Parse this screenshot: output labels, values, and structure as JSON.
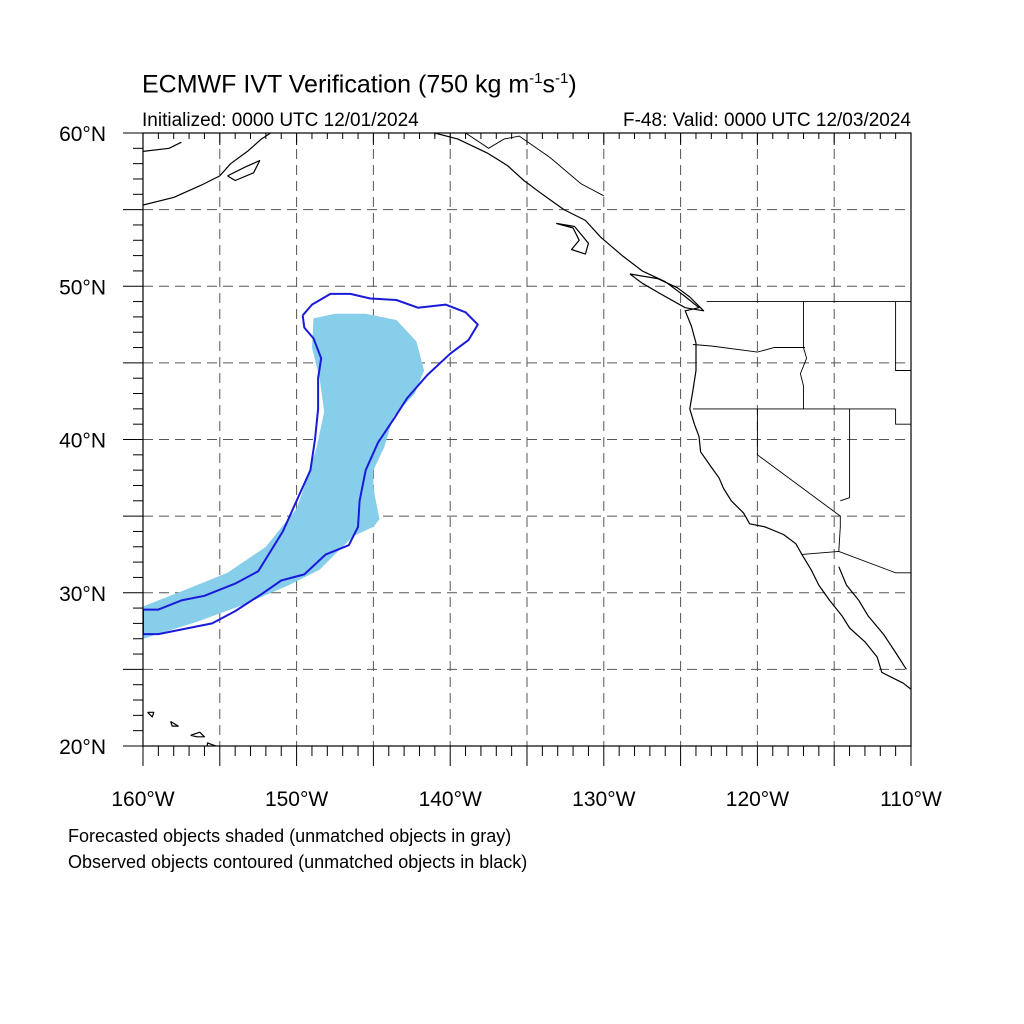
{
  "title": {
    "main": "ECMWF IVT Verification (750 kg m",
    "exp1": "-1",
    "mid": "s",
    "exp2": "-1",
    "end": ")"
  },
  "subtitle": {
    "left": "Initialized: 0000 UTC 12/01/2024",
    "right": "F-48: Valid: 0000 UTC 12/03/2024"
  },
  "map": {
    "lon_range": [
      -160,
      -110
    ],
    "lat_range": [
      20,
      60
    ],
    "grid_lines": "dashed",
    "grid_step_deg": 5,
    "lat_labels": [
      {
        "value": 60,
        "text": "60°N"
      },
      {
        "value": 50,
        "text": "50°N"
      },
      {
        "value": 40,
        "text": "40°N"
      },
      {
        "value": 30,
        "text": "30°N"
      },
      {
        "value": 20,
        "text": "20°N"
      }
    ],
    "lon_labels": [
      {
        "value": -160,
        "text": "160°W"
      },
      {
        "value": -150,
        "text": "150°W"
      },
      {
        "value": -140,
        "text": "140°W"
      },
      {
        "value": -130,
        "text": "130°W"
      },
      {
        "value": -120,
        "text": "120°W"
      },
      {
        "value": -110,
        "text": "110°W"
      }
    ],
    "colors": {
      "forecast_fill": "#87ceeb",
      "observed_contour": "#1a1adb",
      "coastline": "#000000",
      "grid": "#555555"
    }
  },
  "objects": {
    "forecast_shaded": [
      [
        -148.9,
        47.9
      ],
      [
        -147.5,
        48.2
      ],
      [
        -145.5,
        48.2
      ],
      [
        -143.5,
        47.8
      ],
      [
        -142.2,
        46.4
      ],
      [
        -141.7,
        44.5
      ],
      [
        -142.3,
        43.0
      ],
      [
        -143.7,
        41.5
      ],
      [
        -144.3,
        39.5
      ],
      [
        -145.0,
        38.0
      ],
      [
        -145.0,
        37.0
      ],
      [
        -144.9,
        36.3
      ],
      [
        -144.6,
        34.8
      ],
      [
        -145.0,
        34.3
      ],
      [
        -146.3,
        33.7
      ],
      [
        -148.5,
        31.5
      ],
      [
        -150.5,
        30.5
      ],
      [
        -153.5,
        29.2
      ],
      [
        -156.5,
        28.1
      ],
      [
        -160.0,
        27.0
      ],
      [
        -160.0,
        29.1
      ],
      [
        -157.0,
        30.3
      ],
      [
        -154.5,
        31.3
      ],
      [
        -152.0,
        33.0
      ],
      [
        -150.0,
        35.5
      ],
      [
        -149.3,
        37.5
      ],
      [
        -148.7,
        39.5
      ],
      [
        -148.2,
        41.8
      ],
      [
        -148.5,
        44.0
      ],
      [
        -149.0,
        46.0
      ]
    ],
    "observed_contour": [
      [
        -149.6,
        48.1
      ],
      [
        -149.0,
        48.8
      ],
      [
        -147.8,
        49.5
      ],
      [
        -146.5,
        49.5
      ],
      [
        -145.2,
        49.2
      ],
      [
        -143.5,
        49.1
      ],
      [
        -142.1,
        48.6
      ],
      [
        -140.3,
        48.8
      ],
      [
        -139.0,
        48.3
      ],
      [
        -138.2,
        47.5
      ],
      [
        -138.8,
        46.5
      ],
      [
        -140.0,
        45.6
      ],
      [
        -141.5,
        44.2
      ],
      [
        -142.8,
        42.7
      ],
      [
        -143.7,
        41.3
      ],
      [
        -144.7,
        39.8
      ],
      [
        -145.5,
        38.0
      ],
      [
        -145.9,
        36.0
      ],
      [
        -146.0,
        34.3
      ],
      [
        -146.6,
        33.1
      ],
      [
        -148.1,
        32.5
      ],
      [
        -149.5,
        31.2
      ],
      [
        -151.0,
        30.8
      ],
      [
        -152.3,
        29.9
      ],
      [
        -154.0,
        28.8
      ],
      [
        -155.5,
        28.0
      ],
      [
        -157.5,
        27.6
      ],
      [
        -159.0,
        27.3
      ],
      [
        -160.0,
        27.3
      ],
      [
        -160.0,
        28.9
      ],
      [
        -159.0,
        28.9
      ],
      [
        -157.5,
        29.5
      ],
      [
        -156.0,
        29.8
      ],
      [
        -154.0,
        30.6
      ],
      [
        -152.5,
        31.4
      ],
      [
        -150.9,
        34.0
      ],
      [
        -150.0,
        36.0
      ],
      [
        -149.1,
        38.0
      ],
      [
        -148.8,
        40.0
      ],
      [
        -148.6,
        42.0
      ],
      [
        -148.6,
        44.0
      ],
      [
        -148.4,
        45.3
      ],
      [
        -148.9,
        46.6
      ],
      [
        -149.5,
        47.3
      ],
      [
        -149.6,
        48.1
      ]
    ]
  },
  "coastlines": [
    [
      [
        -160,
        55.3
      ],
      [
        -158,
        55.8
      ],
      [
        -156.2,
        56.6
      ],
      [
        -155,
        57.2
      ],
      [
        -154.3,
        58.0
      ],
      [
        -153.2,
        58.8
      ],
      [
        -152.3,
        59.6
      ],
      [
        -151.7,
        60
      ]
    ],
    [
      [
        -160,
        58.8
      ],
      [
        -158.3,
        59.0
      ],
      [
        -157.5,
        59.4
      ]
    ],
    [
      [
        -154.5,
        57.2
      ],
      [
        -153.3,
        57.8
      ],
      [
        -152.4,
        58.2
      ],
      [
        -152.8,
        57.4
      ],
      [
        -154.0,
        56.9
      ],
      [
        -154.5,
        57.2
      ]
    ],
    [
      [
        -141,
        60
      ],
      [
        -139.5,
        59.6
      ],
      [
        -137.6,
        58.7
      ],
      [
        -136.3,
        57.9
      ],
      [
        -135.2,
        56.9
      ],
      [
        -134.0,
        56.0
      ],
      [
        -132.6,
        55.0
      ],
      [
        -131.2,
        54.3
      ],
      [
        -130.2,
        53.2
      ],
      [
        -128.8,
        52.0
      ],
      [
        -127.5,
        51.0
      ],
      [
        -126.0,
        50.3
      ],
      [
        -124.8,
        49.4
      ],
      [
        -123.8,
        48.6
      ],
      [
        -124.7,
        48.4
      ],
      [
        -124.3,
        47.4
      ],
      [
        -124.0,
        46.3
      ],
      [
        -124.0,
        44.5
      ],
      [
        -124.2,
        43.2
      ],
      [
        -124.4,
        42.0
      ],
      [
        -124.1,
        41.0
      ],
      [
        -123.8,
        40.2
      ],
      [
        -123.7,
        39.2
      ],
      [
        -123.0,
        38.2
      ],
      [
        -122.5,
        37.5
      ],
      [
        -122.2,
        36.8
      ],
      [
        -121.7,
        36.0
      ],
      [
        -120.9,
        35.2
      ],
      [
        -120.5,
        34.5
      ],
      [
        -119.5,
        34.3
      ],
      [
        -118.3,
        33.8
      ],
      [
        -117.5,
        33.2
      ],
      [
        -117.1,
        32.5
      ],
      [
        -116.5,
        31.5
      ],
      [
        -116.0,
        30.5
      ],
      [
        -115.3,
        29.5
      ],
      [
        -114.5,
        28.5
      ],
      [
        -114.0,
        27.7
      ],
      [
        -113.0,
        26.8
      ],
      [
        -112.2,
        25.8
      ],
      [
        -111.9,
        24.8
      ],
      [
        -110.5,
        24.1
      ],
      [
        -110.0,
        23.7
      ]
    ],
    [
      [
        -114.7,
        31.7
      ],
      [
        -114.2,
        30.5
      ],
      [
        -113.4,
        29.5
      ],
      [
        -112.8,
        28.5
      ],
      [
        -111.8,
        27.3
      ],
      [
        -111.0,
        26.1
      ],
      [
        -110.3,
        25.0
      ]
    ],
    [
      [
        -133.1,
        54.1
      ],
      [
        -132.0,
        53.8
      ],
      [
        -131.6,
        53.0
      ],
      [
        -132.1,
        52.4
      ],
      [
        -131.2,
        52.1
      ],
      [
        -131.0,
        52.8
      ],
      [
        -131.9,
        53.9
      ],
      [
        -133.1,
        54.1
      ]
    ],
    [
      [
        -128.3,
        50.8
      ],
      [
        -126.5,
        50.5
      ],
      [
        -125.2,
        49.9
      ],
      [
        -124.4,
        49.3
      ],
      [
        -123.5,
        48.4
      ],
      [
        -124.7,
        48.6
      ],
      [
        -126.3,
        49.5
      ],
      [
        -127.5,
        50.2
      ],
      [
        -128.3,
        50.8
      ]
    ],
    [
      [
        -155.0,
        19.9
      ],
      [
        -155.8,
        20.2
      ],
      [
        -155.9,
        19.1
      ],
      [
        -155.0,
        19.9
      ]
    ],
    [
      [
        -156.9,
        20.7
      ],
      [
        -156.3,
        20.9
      ],
      [
        -156.0,
        20.6
      ],
      [
        -156.5,
        20.6
      ],
      [
        -156.9,
        20.7
      ]
    ],
    [
      [
        -159.7,
        22.2
      ],
      [
        -159.3,
        22.2
      ],
      [
        -159.4,
        21.9
      ],
      [
        -159.7,
        22.2
      ]
    ],
    [
      [
        -158.2,
        21.6
      ],
      [
        -157.7,
        21.3
      ],
      [
        -158.1,
        21.3
      ],
      [
        -158.2,
        21.6
      ]
    ]
  ],
  "borders": [
    [
      [
        -141,
        60
      ],
      [
        -141,
        59.8
      ]
    ],
    [
      [
        -130,
        55.9
      ],
      [
        -131.5,
        56.7
      ],
      [
        -133.5,
        58.4
      ],
      [
        -135.5,
        59.8
      ],
      [
        -136.5,
        59.6
      ],
      [
        -137.5,
        59.0
      ],
      [
        -139.0,
        60
      ]
    ],
    [
      [
        -123.3,
        49
      ],
      [
        -110,
        49
      ]
    ],
    [
      [
        -117,
        49
      ],
      [
        -117,
        46.0
      ],
      [
        -116.8,
        45.3
      ],
      [
        -117.2,
        44.3
      ],
      [
        -117.0,
        43.5
      ],
      [
        -117,
        42
      ]
    ],
    [
      [
        -124.2,
        46.2
      ],
      [
        -123.0,
        46.1
      ],
      [
        -120,
        45.7
      ],
      [
        -118.9,
        46.0
      ],
      [
        -116.9,
        46.0
      ]
    ],
    [
      [
        -124.2,
        42
      ],
      [
        -111,
        42
      ]
    ],
    [
      [
        -120,
        42
      ],
      [
        -120,
        39
      ],
      [
        -114.6,
        35.0
      ],
      [
        -114.6,
        34.3
      ],
      [
        -114.7,
        32.7
      ]
    ],
    [
      [
        -114.0,
        42
      ],
      [
        -114.0,
        36.2
      ],
      [
        -114.6,
        36.0
      ]
    ],
    [
      [
        -117.1,
        32.5
      ],
      [
        -114.7,
        32.7
      ],
      [
        -111.0,
        31.3
      ],
      [
        -110,
        31.3
      ]
    ],
    [
      [
        -111,
        49
      ],
      [
        -111,
        44.5
      ],
      [
        -110,
        44.5
      ]
    ],
    [
      [
        -111,
        42
      ],
      [
        -111,
        41
      ],
      [
        -110,
        41
      ]
    ]
  ],
  "footer": {
    "line1": "Forecasted objects shaded (unmatched objects in gray)",
    "line2": "Observed objects contoured (unmatched objects in black)"
  }
}
